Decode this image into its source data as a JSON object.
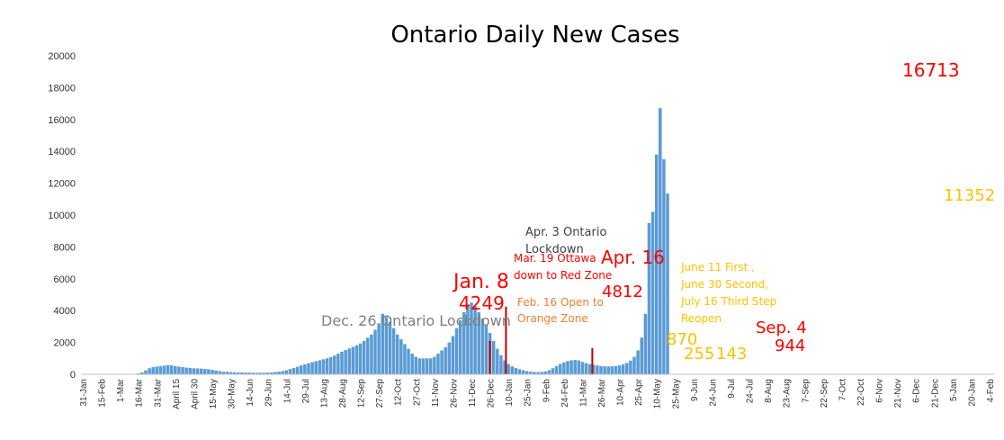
{
  "chart_data": {
    "type": "bar",
    "title": "Ontario Daily New Cases",
    "xlabel": "",
    "ylabel": "",
    "ylim": [
      0,
      20000
    ],
    "yticks": [
      0,
      2000,
      4000,
      6000,
      8000,
      10000,
      12000,
      14000,
      16000,
      18000,
      20000
    ],
    "grid": false,
    "legend": "none",
    "bar_color": "#5b9bd5",
    "highlight_color": "#c00000",
    "x_tick_labels": [
      "31-Jan",
      "15-Feb",
      "1-Mar",
      "16-Mar",
      "31-Mar",
      "April 15",
      "April 30",
      "15-May",
      "30-May",
      "14-Jun",
      "29-Jun",
      "14-Jul",
      "29-Jul",
      "13-Aug",
      "28-Aug",
      "12-Sep",
      "27-Sep",
      "12-Oct",
      "27-Oct",
      "11-Nov",
      "26-Nov",
      "11-Dec",
      "26-Dec",
      "10-Jan",
      "25-Jan",
      "9-Feb",
      "24-Feb",
      "11-Mar",
      "26-Mar",
      "10-Apr",
      "25-Apr",
      "10-May",
      "25-May",
      "9-Jun",
      "24-Jun",
      "9-Jul",
      "24-Jul",
      "8-Aug",
      "23-Aug",
      "7-Sep",
      "22-Sep",
      "7-Oct",
      "22-Oct",
      "6-Nov",
      "21-Nov",
      "6-Dec",
      "21-Dec",
      "5-Jan",
      "20-Jan",
      "4-Feb"
    ],
    "series": [
      {
        "type": "bar",
        "x_start": "2020-01-31",
        "x_step_days": 3,
        "values": [
          0,
          0,
          0,
          0,
          0,
          0,
          0,
          0,
          0,
          0,
          0,
          0,
          0,
          0,
          20,
          60,
          120,
          250,
          380,
          450,
          480,
          510,
          550,
          580,
          560,
          520,
          480,
          450,
          420,
          400,
          380,
          370,
          360,
          340,
          320,
          280,
          240,
          200,
          170,
          160,
          140,
          130,
          120,
          120,
          110,
          110,
          100,
          100,
          100,
          100,
          110,
          120,
          140,
          170,
          200,
          260,
          330,
          400,
          480,
          560,
          630,
          700,
          760,
          820,
          880,
          940,
          1000,
          1080,
          1180,
          1300,
          1420,
          1520,
          1620,
          1720,
          1820,
          1940,
          2100,
          2300,
          2500,
          2800,
          3200,
          3800,
          3600,
          3300,
          2900,
          2500,
          2200,
          1900,
          1600,
          1300,
          1100,
          1000,
          1000,
          1000,
          1000,
          1100,
          1300,
          1500,
          1700,
          2000,
          2400,
          2900,
          3400,
          3900,
          4400,
          4500,
          4300,
          3900,
          3500,
          3100,
          2600,
          2100,
          1600,
          1200,
          870,
          650,
          500,
          400,
          320,
          255,
          200,
          170,
          150,
          143,
          150,
          180,
          260,
          380,
          520,
          650,
          750,
          830,
          880,
          900,
          870,
          780,
          700,
          640,
          600,
          560,
          520,
          500,
          490,
          500,
          520,
          560,
          620,
          720,
          860,
          1100,
          1500,
          2300,
          3800,
          9500,
          10200,
          13800,
          16713,
          13500,
          11352
        ]
      }
    ],
    "highlight_markers": [
      {
        "date": "2020-12-26",
        "value": 2100
      },
      {
        "date": "2021-01-08",
        "value": 4249
      },
      {
        "date": "2021-03-19",
        "value": 1650
      }
    ],
    "annotations": [
      {
        "text": "Dec. 26 Ontario Lockdown",
        "color": "#808080"
      },
      {
        "text": "Jan. 8",
        "color": "#ff0000"
      },
      {
        "text": "4249",
        "color": "#ff0000"
      },
      {
        "text": "Apr. 3 Ontario",
        "color": "#404040"
      },
      {
        "text": "Lockdown",
        "color": "#404040"
      },
      {
        "text": "Mar. 19 Ottawa",
        "color": "#ff0000"
      },
      {
        "text": "down to Red Zone",
        "color": "#ff0000"
      },
      {
        "text": "Apr. 16",
        "color": "#ff0000"
      },
      {
        "text": "4812",
        "color": "#ff0000"
      },
      {
        "text": "Feb. 16 Open to",
        "color": "#ed7d31"
      },
      {
        "text": "Orange Zone",
        "color": "#ed7d31"
      },
      {
        "text": "June 11 First ,",
        "color": "#ffc000"
      },
      {
        "text": "June 30 Second,",
        "color": "#ffc000"
      },
      {
        "text": "July 16 Third Step",
        "color": "#ffc000"
      },
      {
        "text": "Reopen",
        "color": "#ffc000"
      },
      {
        "text": "870",
        "color": "#ffc000"
      },
      {
        "text": "255",
        "color": "#ffc000"
      },
      {
        "text": "143",
        "color": "#ffc000"
      },
      {
        "text": "Sep. 4",
        "color": "#ff0000"
      },
      {
        "text": "944",
        "color": "#ff0000"
      },
      {
        "text": "16713",
        "color": "#ff0000"
      },
      {
        "text": "11352",
        "color": "#ffc000"
      }
    ]
  }
}
